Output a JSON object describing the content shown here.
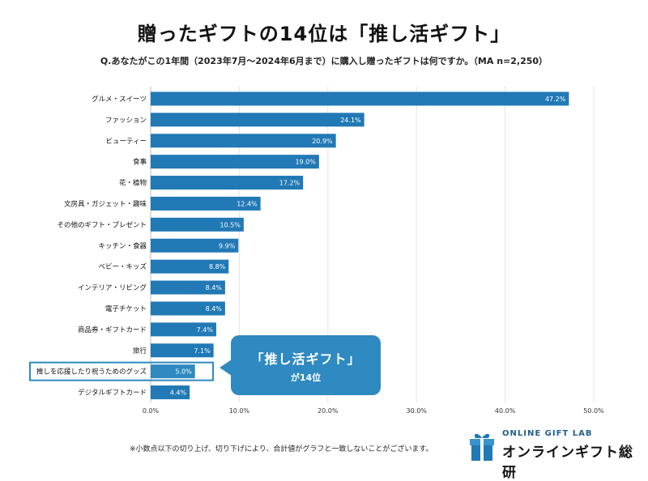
{
  "header": {
    "title": "贈ったギフトの14位は「推し活ギフト」",
    "subtitle": "Q.あなたがこの1年間（2023年7月～2024年6月まで）に購入し贈ったギフトは何ですか。（MA n=2,250）"
  },
  "chart_data": {
    "type": "bar",
    "orientation": "horizontal",
    "categories": [
      "グルメ・スイーツ",
      "ファッション",
      "ビューティー",
      "食事",
      "花・植物",
      "文房具・ガジェット・趣味",
      "その他のギフト・プレゼント",
      "キッチン・食器",
      "ベビー・キッズ",
      "インテリア・リビング",
      "電子チケット",
      "商品券・ギフトカード",
      "旅行",
      "推しを応援したり祝うためのグッズ",
      "デジタルギフトカード"
    ],
    "values": [
      47.2,
      24.1,
      20.9,
      19.0,
      17.2,
      12.4,
      10.5,
      9.9,
      8.8,
      8.4,
      8.4,
      7.4,
      7.1,
      5.0,
      4.4
    ],
    "value_labels": [
      "47.2%",
      "24.1%",
      "20.9%",
      "19.0%",
      "17.2%",
      "12.4%",
      "10.5%",
      "9.9%",
      "8.8%",
      "8.4%",
      "8.4%",
      "7.4%",
      "7.1%",
      "5.0%",
      "4.4%"
    ],
    "xlim": [
      0,
      50
    ],
    "x_ticks": [
      0,
      10,
      20,
      30,
      40,
      50
    ],
    "x_tick_labels": [
      "0.0%",
      "10.0%",
      "20.0%",
      "30.0%",
      "40.0%",
      "50.0%"
    ],
    "highlight_index": 13,
    "grid": true,
    "bar_color": "#2179b5",
    "highlight_color": "#2e8ac0"
  },
  "callout": {
    "line1": "「推し活ギフト」",
    "line2": "が14位"
  },
  "footer": {
    "note": "※小数点以下の切り上げ、切り下げにより、合計値がグラフと一致しないことがございます。"
  },
  "logo": {
    "en": "ONLINE GIFT LAB",
    "jp": "オンラインギフト総研",
    "icon": "gift-box-icon"
  }
}
